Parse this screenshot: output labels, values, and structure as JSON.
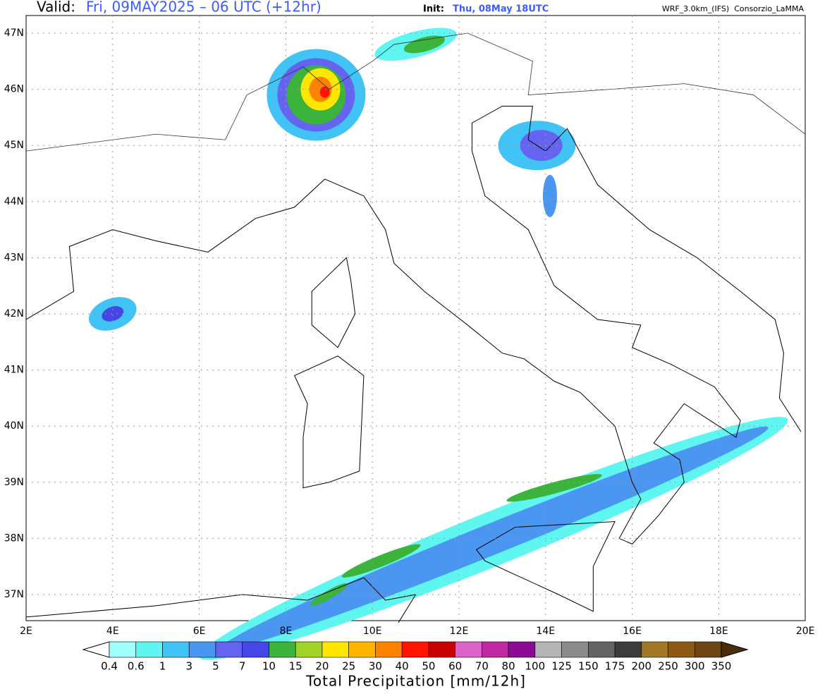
{
  "header": {
    "valid_label": "Valid:",
    "valid": "Fri, 09MAY2025 – 06 UTC (+12hr)",
    "init_label": "Init:",
    "init": "Thu, 08May 18UTC",
    "model": "WRF_3.0km_(IFS)  Consorzio_LaMMA"
  },
  "map": {
    "lat_labels": [
      "47N",
      "46N",
      "45N",
      "44N",
      "43N",
      "42N",
      "41N",
      "40N",
      "39N",
      "38N",
      "37N"
    ],
    "lon_labels": [
      "2E",
      "4E",
      "6E",
      "8E",
      "10E",
      "12E",
      "14E",
      "16E",
      "18E",
      "20E"
    ]
  },
  "colorbar": {
    "title": "Total Precipitation [mm/12h]",
    "labels": [
      "0.4",
      "0.6",
      "1",
      "3",
      "5",
      "7",
      "10",
      "15",
      "20",
      "25",
      "30",
      "40",
      "50",
      "60",
      "70",
      "80",
      "100",
      "125",
      "150",
      "175",
      "200",
      "250",
      "300",
      "350"
    ],
    "under_color": "#ffffff",
    "colors": [
      "#a0fffa",
      "#5ff5f0",
      "#42c3f5",
      "#4a96f0",
      "#6464f0",
      "#4646e6",
      "#3cb43c",
      "#a0d228",
      "#ffe600",
      "#ffb400",
      "#ff8200",
      "#ff1400",
      "#c80000",
      "#dc64c8",
      "#be28a0",
      "#8c0a96",
      "#b4b4b4",
      "#8c8c8c",
      "#646464",
      "#3c3c3c",
      "#a07828",
      "#8c5a14",
      "#6e4614"
    ],
    "over_color": "#4a2d0a"
  }
}
